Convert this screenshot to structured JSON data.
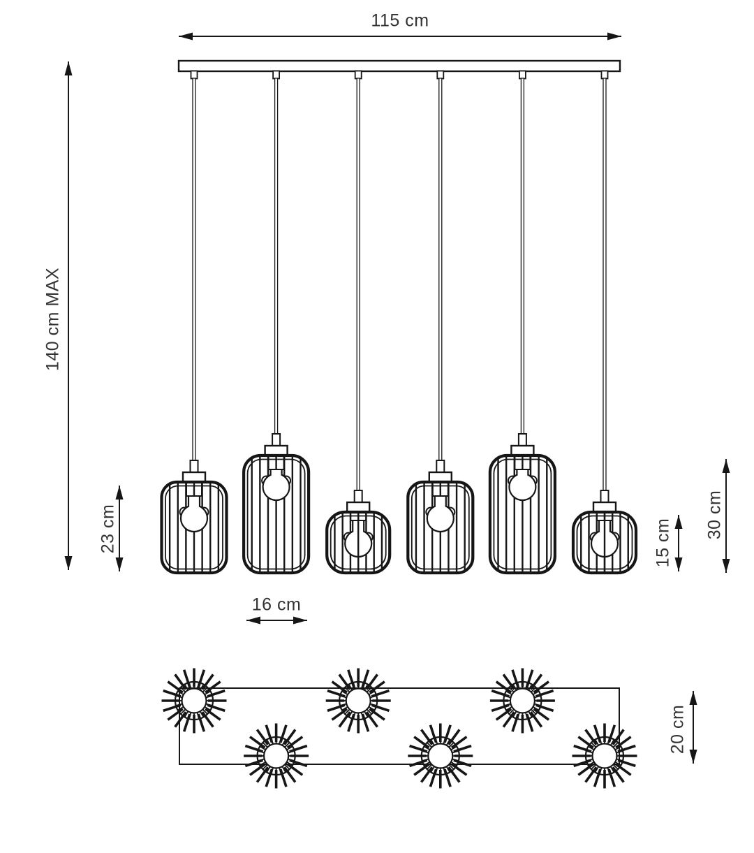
{
  "diagram": {
    "title": "pendant-lamp-dimension-drawing",
    "background": "#ffffff",
    "line_color": "#161616",
    "text_color": "#333333"
  },
  "dimensions": {
    "width_label": "115 cm",
    "max_height_label": "140 cm MAX",
    "medium_shade_height_label": "23 cm",
    "shade_width_label": "16 cm",
    "small_shade_height_label": "15 cm",
    "large_shade_height_label": "30 cm",
    "canopy_depth_label": "20 cm"
  },
  "fixture": {
    "pendant_count": 6,
    "pendants": [
      {
        "size": "medium",
        "height_cm": 23
      },
      {
        "size": "large",
        "height_cm": 30
      },
      {
        "size": "small",
        "height_cm": 15
      },
      {
        "size": "medium",
        "height_cm": 23
      },
      {
        "size": "large",
        "height_cm": 30
      },
      {
        "size": "small",
        "height_cm": 15
      }
    ],
    "shade_width_cm": 16,
    "canopy_width_cm": 115,
    "canopy_depth_cm": 20,
    "max_drop_cm": 140
  }
}
